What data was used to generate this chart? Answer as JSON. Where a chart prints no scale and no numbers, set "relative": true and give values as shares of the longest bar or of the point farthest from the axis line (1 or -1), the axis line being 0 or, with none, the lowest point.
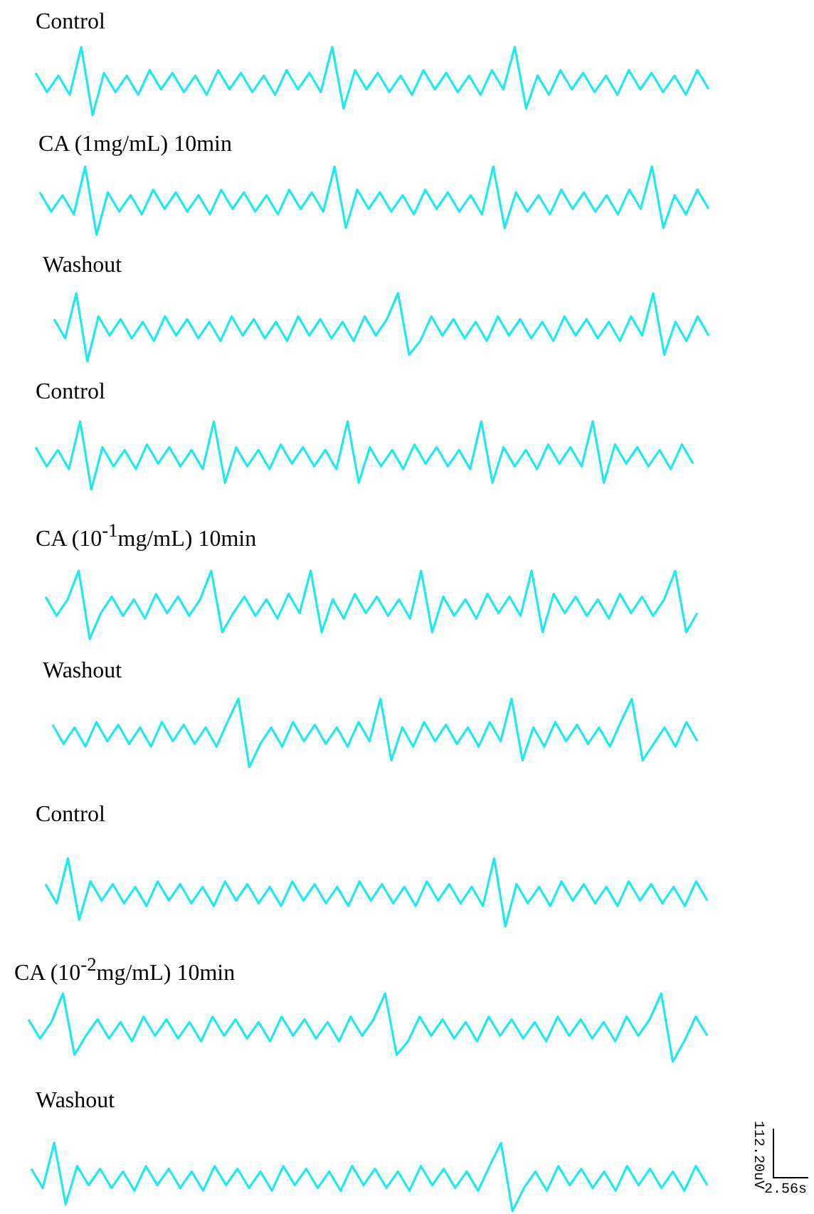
{
  "chart_data": [
    {
      "type": "line",
      "title": "Control",
      "relative": true,
      "categories": [
        null,
        null,
        null,
        null,
        null,
        null,
        null,
        null,
        null,
        null,
        null,
        null,
        null,
        null,
        null,
        null,
        null,
        null,
        null,
        null,
        null,
        null,
        null,
        null,
        null,
        null,
        null,
        null,
        null,
        null,
        null,
        null,
        null,
        null,
        null,
        null,
        null,
        null,
        null,
        null,
        null,
        null,
        null,
        null,
        null,
        null,
        null,
        null,
        null,
        null,
        null,
        null,
        null,
        null,
        null,
        null,
        null,
        null,
        null,
        null
      ],
      "series": [
        {
          "color": "#1ee8f0",
          "values": [
            0.62,
            0.34,
            0.58,
            0.3,
            1,
            0,
            0.62,
            0.34,
            0.58,
            0.3,
            0.66,
            0.38,
            0.62,
            0.34,
            0.58,
            0.3,
            0.66,
            0.38,
            0.62,
            0.34,
            0.58,
            0.3,
            0.66,
            0.38,
            0.62,
            0.34,
            1,
            0.1,
            0.66,
            0.38,
            0.62,
            0.34,
            0.58,
            0.3,
            0.66,
            0.38,
            0.62,
            0.34,
            0.58,
            0.3,
            0.66,
            0.38,
            1,
            0.1,
            0.58,
            0.3,
            0.66,
            0.38,
            0.62,
            0.34,
            0.58,
            0.3,
            0.66,
            0.38,
            0.62,
            0.34,
            0.58,
            0.3,
            0.66,
            0.38
          ]
        }
      ]
    },
    {
      "type": "line",
      "title": "CA (1mg/mL) 10min",
      "relative": true,
      "categories": [
        null,
        null,
        null,
        null,
        null,
        null,
        null,
        null,
        null,
        null,
        null,
        null,
        null,
        null,
        null,
        null,
        null,
        null,
        null,
        null,
        null,
        null,
        null,
        null,
        null,
        null,
        null,
        null,
        null,
        null,
        null,
        null,
        null,
        null,
        null,
        null,
        null,
        null,
        null,
        null,
        null,
        null,
        null,
        null,
        null,
        null,
        null,
        null,
        null,
        null,
        null,
        null,
        null,
        null,
        null,
        null,
        null,
        null,
        null,
        null
      ],
      "series": [
        {
          "color": "#1ee8f0",
          "values": [
            0.62,
            0.34,
            0.58,
            0.3,
            1,
            0,
            0.62,
            0.34,
            0.58,
            0.3,
            0.66,
            0.38,
            0.62,
            0.34,
            0.58,
            0.3,
            0.66,
            0.38,
            0.62,
            0.34,
            0.58,
            0.3,
            0.66,
            0.38,
            0.62,
            0.34,
            1,
            0.1,
            0.66,
            0.38,
            0.62,
            0.34,
            0.58,
            0.3,
            0.66,
            0.38,
            0.62,
            0.34,
            0.58,
            0.3,
            1,
            0.1,
            0.62,
            0.34,
            0.58,
            0.3,
            0.66,
            0.38,
            0.62,
            0.34,
            0.58,
            0.3,
            0.66,
            0.38,
            1,
            0.1,
            0.58,
            0.3,
            0.66,
            0.38
          ]
        }
      ]
    },
    {
      "type": "line",
      "title": "Washout",
      "relative": true,
      "categories": [
        null,
        null,
        null,
        null,
        null,
        null,
        null,
        null,
        null,
        null,
        null,
        null,
        null,
        null,
        null,
        null,
        null,
        null,
        null,
        null,
        null,
        null,
        null,
        null,
        null,
        null,
        null,
        null,
        null,
        null,
        null,
        null,
        null,
        null,
        null,
        null,
        null,
        null,
        null,
        null,
        null,
        null,
        null,
        null,
        null,
        null,
        null,
        null,
        null,
        null,
        null,
        null,
        null,
        null,
        null,
        null,
        null,
        null,
        null,
        null
      ],
      "series": [
        {
          "color": "#1ee8f0",
          "values": [
            0.62,
            0.34,
            1,
            0,
            0.66,
            0.38,
            0.62,
            0.34,
            0.58,
            0.3,
            0.66,
            0.38,
            0.62,
            0.34,
            0.58,
            0.3,
            0.66,
            0.38,
            0.62,
            0.34,
            0.58,
            0.3,
            0.66,
            0.38,
            0.62,
            0.34,
            0.58,
            0.3,
            0.66,
            0.38,
            0.62,
            1,
            0.1,
            0.3,
            0.66,
            0.38,
            0.62,
            0.34,
            0.58,
            0.3,
            0.66,
            0.38,
            0.62,
            0.34,
            0.58,
            0.3,
            0.66,
            0.38,
            0.62,
            0.34,
            0.58,
            0.3,
            0.66,
            0.38,
            1,
            0.1,
            0.58,
            0.3,
            0.66,
            0.38
          ]
        }
      ]
    },
    {
      "type": "line",
      "title": "Control",
      "relative": true,
      "categories": [
        null,
        null,
        null,
        null,
        null,
        null,
        null,
        null,
        null,
        null,
        null,
        null,
        null,
        null,
        null,
        null,
        null,
        null,
        null,
        null,
        null,
        null,
        null,
        null,
        null,
        null,
        null,
        null,
        null,
        null,
        null,
        null,
        null,
        null,
        null,
        null,
        null,
        null,
        null,
        null,
        null,
        null,
        null,
        null,
        null,
        null,
        null,
        null,
        null,
        null,
        null,
        null,
        null,
        null,
        null,
        null,
        null,
        null,
        null,
        null
      ],
      "series": [
        {
          "color": "#1ee8f0",
          "values": [
            0.62,
            0.34,
            0.58,
            0.3,
            1,
            0,
            0.62,
            0.34,
            0.58,
            0.3,
            0.66,
            0.38,
            0.62,
            0.34,
            0.58,
            0.3,
            1,
            0.1,
            0.62,
            0.34,
            0.58,
            0.3,
            0.66,
            0.38,
            0.62,
            0.34,
            0.58,
            0.3,
            1,
            0.1,
            0.62,
            0.34,
            0.58,
            0.3,
            0.66,
            0.38,
            0.62,
            0.34,
            0.58,
            0.3,
            1,
            0.1,
            0.62,
            0.34,
            0.58,
            0.3,
            0.66,
            0.38,
            0.62,
            0.34,
            1,
            0.1,
            0.66,
            0.38,
            0.62,
            0.34,
            0.58,
            0.3,
            0.66,
            0.38
          ]
        }
      ]
    },
    {
      "type": "line",
      "title": "CA (10$^{-1}$mg/mL) 10min",
      "relative": true,
      "categories": [
        null,
        null,
        null,
        null,
        null,
        null,
        null,
        null,
        null,
        null,
        null,
        null,
        null,
        null,
        null,
        null,
        null,
        null,
        null,
        null,
        null,
        null,
        null,
        null,
        null,
        null,
        null,
        null,
        null,
        null,
        null,
        null,
        null,
        null,
        null,
        null,
        null,
        null,
        null,
        null,
        null,
        null,
        null,
        null,
        null,
        null,
        null,
        null,
        null,
        null,
        null,
        null,
        null,
        null,
        null,
        null,
        null,
        null,
        null,
        null
      ],
      "series": [
        {
          "color": "#1ee8f0",
          "values": [
            0.62,
            0.34,
            0.58,
            1,
            0,
            0.38,
            0.62,
            0.34,
            0.58,
            0.3,
            0.66,
            0.38,
            0.62,
            0.34,
            0.58,
            1,
            0.1,
            0.38,
            0.62,
            0.34,
            0.58,
            0.3,
            0.66,
            0.38,
            1,
            0.1,
            0.58,
            0.3,
            0.66,
            0.38,
            0.62,
            0.34,
            0.58,
            0.3,
            1,
            0.1,
            0.62,
            0.34,
            0.58,
            0.3,
            0.66,
            0.38,
            0.62,
            0.34,
            1,
            0.1,
            0.66,
            0.38,
            0.62,
            0.34,
            0.58,
            0.3,
            0.66,
            0.38,
            0.62,
            0.34,
            0.58,
            1,
            0.1,
            0.38
          ]
        }
      ]
    },
    {
      "type": "line",
      "title": "Washout",
      "relative": true,
      "categories": [
        null,
        null,
        null,
        null,
        null,
        null,
        null,
        null,
        null,
        null,
        null,
        null,
        null,
        null,
        null,
        null,
        null,
        null,
        null,
        null,
        null,
        null,
        null,
        null,
        null,
        null,
        null,
        null,
        null,
        null,
        null,
        null,
        null,
        null,
        null,
        null,
        null,
        null,
        null,
        null,
        null,
        null,
        null,
        null,
        null,
        null,
        null,
        null,
        null,
        null,
        null,
        null,
        null,
        null,
        null,
        null,
        null,
        null,
        null,
        null
      ],
      "series": [
        {
          "color": "#1ee8f0",
          "values": [
            0.62,
            0.34,
            0.58,
            0.3,
            0.66,
            0.38,
            0.62,
            0.34,
            0.58,
            0.3,
            0.66,
            0.38,
            0.62,
            0.34,
            0.58,
            0.3,
            0.66,
            1,
            0,
            0.34,
            0.58,
            0.3,
            0.66,
            0.38,
            0.62,
            0.34,
            0.58,
            0.3,
            0.66,
            0.38,
            1,
            0.1,
            0.58,
            0.3,
            0.66,
            0.38,
            0.62,
            0.34,
            0.58,
            0.3,
            0.66,
            0.38,
            1,
            0.1,
            0.58,
            0.3,
            0.66,
            0.38,
            0.62,
            0.34,
            0.58,
            0.3,
            0.66,
            1,
            0.1,
            0.34,
            0.58,
            0.3,
            0.66,
            0.38
          ]
        }
      ]
    },
    {
      "type": "line",
      "title": "Control",
      "relative": true,
      "categories": [
        null,
        null,
        null,
        null,
        null,
        null,
        null,
        null,
        null,
        null,
        null,
        null,
        null,
        null,
        null,
        null,
        null,
        null,
        null,
        null,
        null,
        null,
        null,
        null,
        null,
        null,
        null,
        null,
        null,
        null,
        null,
        null,
        null,
        null,
        null,
        null,
        null,
        null,
        null,
        null,
        null,
        null,
        null,
        null,
        null,
        null,
        null,
        null,
        null,
        null,
        null,
        null,
        null,
        null,
        null,
        null,
        null,
        null,
        null,
        null
      ],
      "series": [
        {
          "color": "#1ee8f0",
          "values": [
            0.62,
            0.34,
            1,
            0.1,
            0.66,
            0.38,
            0.62,
            0.34,
            0.58,
            0.3,
            0.66,
            0.38,
            0.62,
            0.34,
            0.58,
            0.3,
            0.66,
            0.38,
            0.62,
            0.34,
            0.58,
            0.3,
            0.66,
            0.38,
            0.62,
            0.34,
            0.58,
            0.3,
            0.66,
            0.38,
            0.62,
            0.34,
            0.58,
            0.3,
            0.66,
            0.38,
            0.62,
            0.34,
            0.58,
            0.3,
            1,
            0,
            0.62,
            0.34,
            0.58,
            0.3,
            0.66,
            0.38,
            0.62,
            0.34,
            0.58,
            0.3,
            0.66,
            0.38,
            0.62,
            0.34,
            0.58,
            0.3,
            0.66,
            0.38
          ]
        }
      ]
    },
    {
      "type": "line",
      "title": "CA (10$^{-2}$mg/mL) 10min",
      "relative": true,
      "categories": [
        null,
        null,
        null,
        null,
        null,
        null,
        null,
        null,
        null,
        null,
        null,
        null,
        null,
        null,
        null,
        null,
        null,
        null,
        null,
        null,
        null,
        null,
        null,
        null,
        null,
        null,
        null,
        null,
        null,
        null,
        null,
        null,
        null,
        null,
        null,
        null,
        null,
        null,
        null,
        null,
        null,
        null,
        null,
        null,
        null,
        null,
        null,
        null,
        null,
        null,
        null,
        null,
        null,
        null,
        null,
        null,
        null,
        null,
        null,
        null
      ],
      "series": [
        {
          "color": "#1ee8f0",
          "values": [
            0.62,
            0.34,
            0.58,
            1,
            0.1,
            0.38,
            0.62,
            0.34,
            0.58,
            0.3,
            0.66,
            0.38,
            0.62,
            0.34,
            0.58,
            0.3,
            0.66,
            0.38,
            0.62,
            0.34,
            0.58,
            0.3,
            0.66,
            0.38,
            0.62,
            0.34,
            0.58,
            0.3,
            0.66,
            0.38,
            0.62,
            1,
            0.1,
            0.3,
            0.66,
            0.38,
            0.62,
            0.34,
            0.58,
            0.3,
            0.66,
            0.38,
            0.62,
            0.34,
            0.58,
            0.3,
            0.66,
            0.38,
            0.62,
            0.34,
            0.58,
            0.3,
            0.66,
            0.38,
            0.62,
            1,
            0,
            0.3,
            0.66,
            0.38
          ]
        }
      ]
    },
    {
      "type": "line",
      "title": "Washout",
      "relative": true,
      "annotations": [
        "112.20uV",
        "2.56s"
      ],
      "categories": [
        null,
        null,
        null,
        null,
        null,
        null,
        null,
        null,
        null,
        null,
        null,
        null,
        null,
        null,
        null,
        null,
        null,
        null,
        null,
        null,
        null,
        null,
        null,
        null,
        null,
        null,
        null,
        null,
        null,
        null,
        null,
        null,
        null,
        null,
        null,
        null,
        null,
        null,
        null,
        null,
        null,
        null,
        null,
        null,
        null,
        null,
        null,
        null,
        null,
        null,
        null,
        null,
        null,
        null,
        null,
        null,
        null,
        null,
        null,
        null
      ],
      "series": [
        {
          "color": "#1ee8f0",
          "values": [
            0.62,
            0.34,
            1,
            0.1,
            0.66,
            0.38,
            0.62,
            0.34,
            0.58,
            0.3,
            0.66,
            0.38,
            0.62,
            0.34,
            0.58,
            0.3,
            0.66,
            0.38,
            0.62,
            0.34,
            0.58,
            0.3,
            0.66,
            0.38,
            0.62,
            0.34,
            0.58,
            0.3,
            0.66,
            0.38,
            0.62,
            0.34,
            0.58,
            0.3,
            0.66,
            0.38,
            0.62,
            0.34,
            0.58,
            0.3,
            0.66,
            1,
            0,
            0.34,
            0.58,
            0.3,
            0.66,
            0.38,
            0.62,
            0.34,
            0.58,
            0.3,
            0.66,
            0.38,
            0.62,
            0.34,
            0.58,
            0.3,
            0.66,
            0.38
          ]
        }
      ]
    }
  ]
}
